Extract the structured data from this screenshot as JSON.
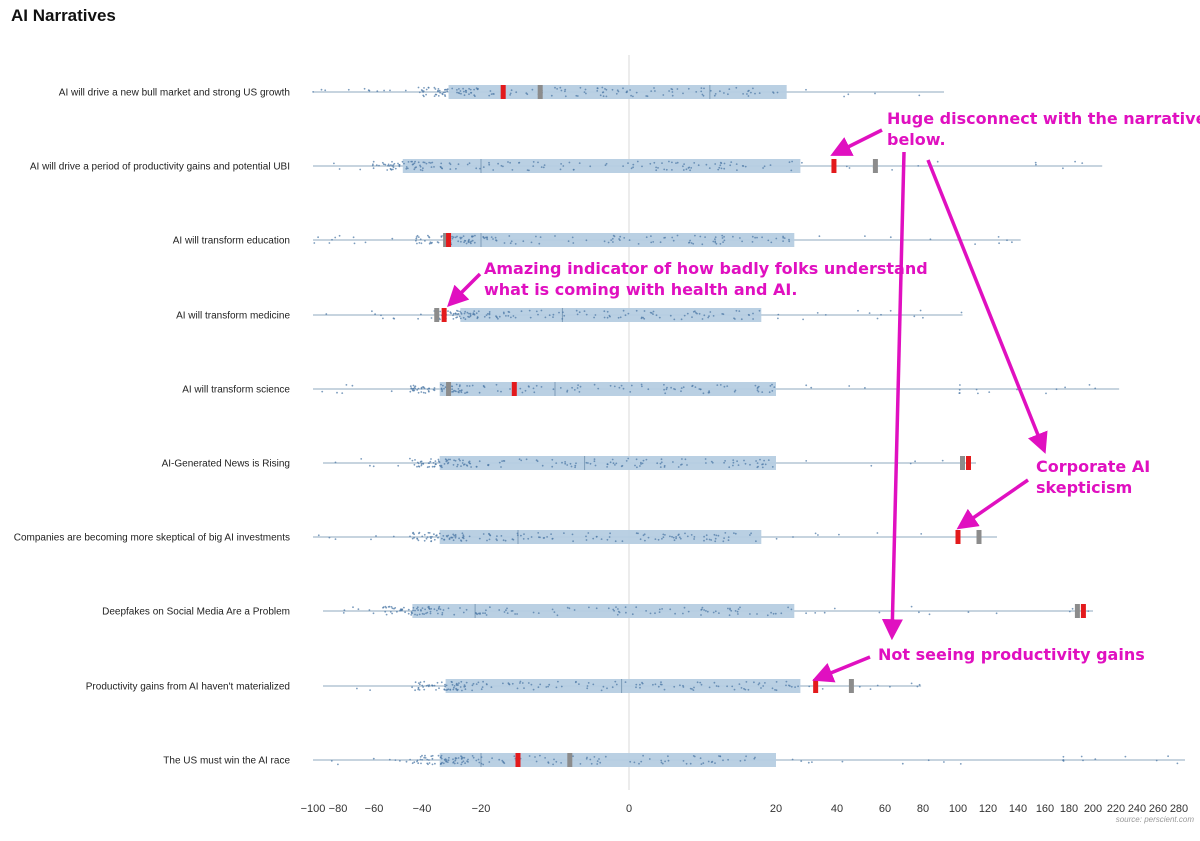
{
  "title": "AI Narratives",
  "source": "source: perscient.com",
  "chart_data": {
    "type": "box-strip",
    "title": "AI Narratives",
    "xlabel": "",
    "ylabel": "",
    "x_tick_labels": [
      "-100",
      "-80",
      "-60",
      "-40",
      "-20",
      "0",
      "20",
      "40",
      "60",
      "80",
      "100",
      "120",
      "140",
      "160",
      "180",
      "200",
      "220",
      "240",
      "260",
      "280"
    ],
    "rows": [
      {
        "label": "AI will drive a new bull market and strong US growth",
        "min": -100,
        "max": 92,
        "q1": -31,
        "q3": 23.5,
        "median": 11,
        "current": -17,
        "previous": -12
      },
      {
        "label": "AI will drive a period of productivity gains and potential UBI",
        "min": -100,
        "max": 208,
        "q1": -48,
        "q3": 28,
        "median": -20,
        "current": 39,
        "previous": 56
      },
      {
        "label": "AI will transform education",
        "min": -100,
        "max": 142,
        "q1": -32,
        "q3": 26,
        "median": -20,
        "current": -31,
        "previous": -32
      },
      {
        "label": "AI will transform medicine",
        "min": -100,
        "max": 103,
        "q1": -27,
        "q3": 18,
        "median": -9,
        "current": -32.5,
        "previous": -35
      },
      {
        "label": "AI will transform science",
        "min": -100,
        "max": 223,
        "q1": -34,
        "q3": 20,
        "median": -10,
        "current": -15.5,
        "previous": -31
      },
      {
        "label": "AI-Generated News is Rising",
        "min": -92,
        "max": 112,
        "q1": -34,
        "q3": 20,
        "median": -6,
        "current": 107,
        "previous": 103
      },
      {
        "label": "Companies are becoming more skeptical of big AI investments",
        "min": -100,
        "max": 126,
        "q1": -34,
        "q3": 18,
        "median": -15,
        "current": 100,
        "previous": 114
      },
      {
        "label": "Deepfakes on Social Media Are a Problem",
        "min": -92,
        "max": 200,
        "q1": -44,
        "q3": 26,
        "median": -22,
        "current": 192,
        "previous": 187
      },
      {
        "label": "Productivity gains from AI haven't materialized",
        "min": -92,
        "max": 79,
        "q1": -32,
        "q3": 28,
        "median": -1,
        "current": 33,
        "previous": 46
      },
      {
        "label": "The US must win the AI race",
        "min": -100,
        "max": 286,
        "q1": -34,
        "q3": 20,
        "median": -20,
        "current": -15,
        "previous": -8
      }
    ],
    "annotations": [
      {
        "lines": [
          "Huge disconnect with the narratives",
          "below."
        ]
      },
      {
        "lines": [
          "Amazing indicator of how badly folks understand",
          "what is coming with health and AI."
        ]
      },
      {
        "lines": [
          "Corporate AI",
          "skepticism"
        ]
      },
      {
        "lines": [
          "Not seeing productivity gains"
        ]
      }
    ],
    "colors": {
      "box": "#b6cde2",
      "line": "#8fa9bf",
      "dots": "#4e79a7",
      "current": "#e31a1c",
      "previous": "#8c8c8c",
      "annotation": "#e010c0",
      "zero_line": "#d9d9d9"
    }
  }
}
